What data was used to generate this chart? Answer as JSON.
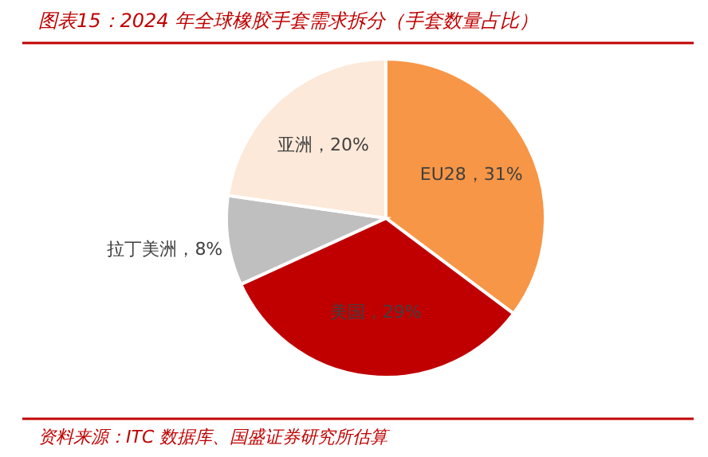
{
  "chart_data": {
    "type": "pie",
    "title": "图表15：2024 年全球橡胶手套需求拆分（手套数量占比）",
    "categories": [
      "EU28",
      "美国",
      "拉丁美洲",
      "亚洲"
    ],
    "values": [
      31,
      29,
      8,
      20
    ],
    "value_labels": [
      "31%",
      "29%",
      "8%",
      "20%"
    ],
    "colors": [
      "#f79646",
      "#c00000",
      "#bfbfbf",
      "#fde9d9"
    ],
    "annotations": [
      "资料来源：ITC 数据库、国盛证券研究所估算"
    ]
  }
}
